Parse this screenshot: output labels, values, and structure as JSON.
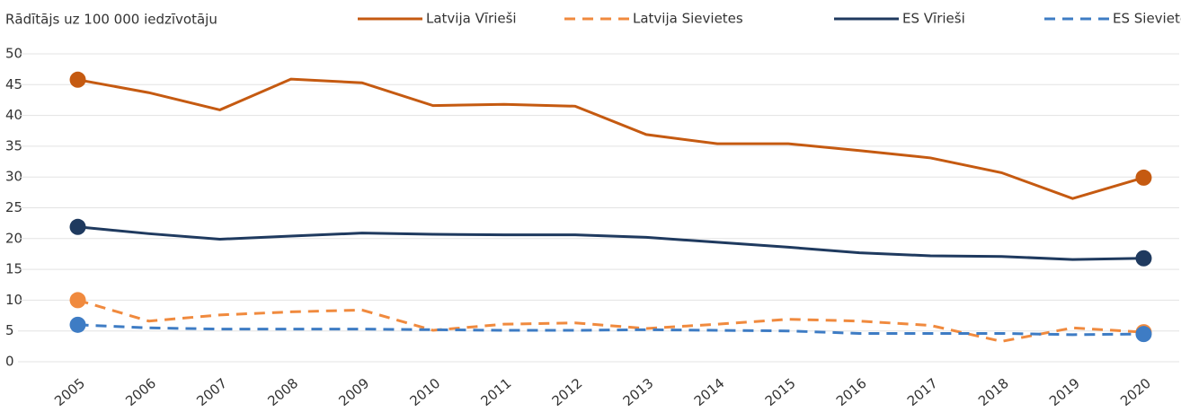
{
  "chart_data": {
    "type": "line",
    "y_axis_label": "Rādītājs uz 100 000 iedzīvotāju",
    "categories": [
      "2005",
      "2006",
      "2007",
      "2008",
      "2009",
      "2010",
      "2011",
      "2012",
      "2013",
      "2014",
      "2015",
      "2016",
      "2017",
      "2018",
      "2019",
      "2020"
    ],
    "series": [
      {
        "name": "Latvija Vīrieši",
        "color": "#c55a11",
        "line_style": "solid",
        "values": [
          45.8,
          43.7,
          40.9,
          45.9,
          45.3,
          41.6,
          41.8,
          41.5,
          36.9,
          35.4,
          35.4,
          34.3,
          33.1,
          30.7,
          26.5,
          29.9
        ]
      },
      {
        "name": "Latvija Sievietes",
        "color": "#f08a3e",
        "line_style": "dashed",
        "values": [
          10.0,
          6.6,
          7.6,
          8.1,
          8.4,
          5.1,
          6.1,
          6.3,
          5.4,
          6.1,
          6.9,
          6.6,
          5.9,
          3.3,
          5.5,
          4.8
        ]
      },
      {
        "name": "ES Vīrieši",
        "color": "#1f3a5f",
        "line_style": "solid",
        "values": [
          21.9,
          20.8,
          19.9,
          20.4,
          20.9,
          20.7,
          20.6,
          20.6,
          20.2,
          19.4,
          18.6,
          17.7,
          17.2,
          17.1,
          16.6,
          16.8
        ]
      },
      {
        "name": "ES Sievietes",
        "color": "#3e7cc4",
        "line_style": "dashed",
        "values": [
          6.0,
          5.5,
          5.3,
          5.3,
          5.3,
          5.2,
          5.1,
          5.1,
          5.2,
          5.1,
          5.0,
          4.6,
          4.6,
          4.6,
          4.4,
          4.5
        ]
      }
    ],
    "ylim": [
      0,
      50
    ],
    "yticks": [
      0,
      5,
      10,
      15,
      20,
      25,
      30,
      35,
      40,
      45,
      50
    ],
    "grid": true,
    "legend": "top"
  }
}
